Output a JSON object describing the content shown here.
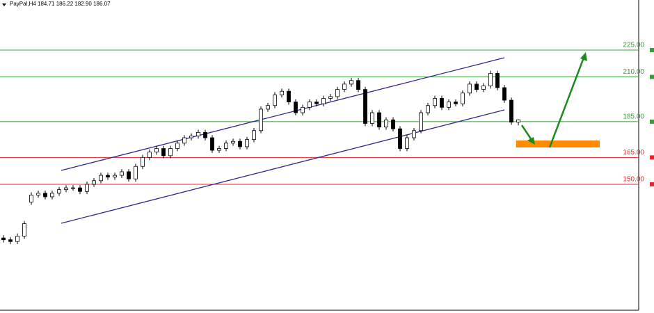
{
  "chart_data": {
    "type": "candlestick",
    "title": "PayPal,H4  184.71 186.22 182.90 186.07",
    "ylim": [
      80,
      253
    ],
    "up_color": "#ffffff",
    "down_color": "#000000",
    "open": [
      120,
      119,
      118,
      121,
      140,
      144,
      145,
      143,
      145,
      147,
      148,
      148,
      146,
      150,
      152,
      155,
      154,
      155,
      157,
      153,
      160,
      165,
      168,
      170,
      166,
      170,
      173,
      176,
      177,
      179,
      176,
      169,
      170,
      173,
      174,
      171,
      175,
      180,
      192,
      194,
      200,
      202,
      196,
      190,
      193,
      196,
      195,
      198,
      199,
      203,
      206,
      208,
      203,
      184,
      190,
      182,
      186,
      181,
      170,
      176,
      180,
      190,
      194,
      198,
      193,
      196,
      195,
      201,
      206,
      203,
      205,
      212,
      204,
      197,
      184.71
    ],
    "high": [
      121.5,
      120.5,
      122.5,
      129.5,
      145.5,
      146.5,
      146.5,
      146.5,
      148.5,
      149.5,
      149.5,
      149.5,
      151.5,
      153.5,
      156.5,
      156.5,
      156.5,
      158.5,
      158.5,
      161.5,
      166.5,
      169.5,
      171.5,
      171.5,
      171.5,
      174.5,
      177.5,
      178.5,
      180.5,
      180.5,
      177.5,
      171.5,
      174.5,
      175.5,
      175.5,
      176.5,
      181.5,
      193.5,
      195.5,
      201.5,
      203.5,
      203.5,
      197.5,
      194.5,
      197.5,
      197.5,
      199.5,
      200.5,
      204.5,
      207.5,
      209.5,
      209.5,
      204.5,
      191.5,
      191.5,
      187.5,
      187.5,
      182.5,
      177.5,
      181.5,
      191.5,
      195.5,
      199.5,
      199.5,
      197.5,
      197.5,
      202.5,
      207.5,
      207.5,
      206.5,
      213.5,
      213.5,
      205.5,
      198.5,
      186.22
    ],
    "low": [
      117.5,
      116.5,
      116.5,
      119.5,
      138.5,
      142.5,
      141.5,
      141.5,
      143.5,
      145.5,
      146.5,
      144.5,
      144.5,
      148.5,
      150.5,
      152.5,
      152.5,
      153.5,
      151.5,
      151.5,
      158.5,
      163.5,
      166.5,
      164.5,
      164.5,
      168.5,
      171.5,
      174.5,
      175.5,
      174.5,
      167.5,
      167.5,
      168.5,
      171.5,
      169.5,
      169.5,
      173.5,
      178.5,
      190.5,
      192.5,
      198.5,
      194.5,
      188.5,
      188.5,
      191.5,
      193.5,
      193.5,
      196.5,
      197.5,
      201.5,
      204.5,
      201.5,
      182.5,
      182.5,
      180.5,
      180.5,
      179.5,
      168.5,
      168.5,
      174.5,
      178.5,
      188.5,
      192.5,
      191.5,
      191.5,
      193.5,
      193.5,
      199.5,
      201.5,
      201.5,
      203.5,
      202.5,
      195.5,
      183.21,
      182.9
    ],
    "close": [
      119,
      118,
      121,
      128,
      144,
      145,
      143,
      145,
      147,
      148,
      148,
      146,
      150,
      152,
      155,
      154,
      155,
      157,
      153,
      160,
      165,
      168,
      170,
      166,
      170,
      173,
      176,
      177,
      179,
      176,
      169,
      170,
      173,
      174,
      171,
      175,
      180,
      192,
      194,
      200,
      202,
      196,
      190,
      193,
      196,
      195,
      198,
      199,
      203,
      206,
      208,
      203,
      184,
      190,
      182,
      186,
      181,
      170,
      176,
      180,
      190,
      194,
      198,
      193,
      196,
      195,
      201,
      206,
      203,
      205,
      212,
      204,
      197,
      184.71,
      186.07
    ],
    "levels": [
      {
        "value": 225,
        "label": "225.00",
        "color": "#3a9a3a"
      },
      {
        "value": 210,
        "label": "210.00",
        "color": "#3a9a3a"
      },
      {
        "value": 185,
        "label": "185.00",
        "color": "#3a9a3a"
      },
      {
        "value": 165,
        "label": "165.00",
        "color": "#e8262c"
      },
      {
        "value": 150,
        "label": "150.00",
        "color": "#e8262c"
      }
    ]
  }
}
